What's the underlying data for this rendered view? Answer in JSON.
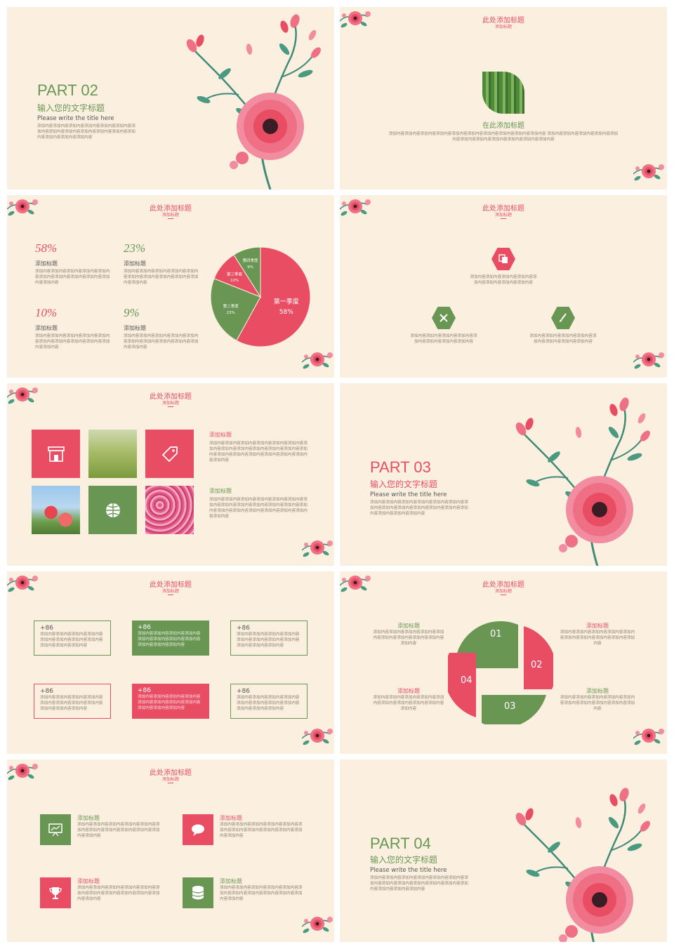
{
  "slide1": {
    "part": "PART 02",
    "title_cn": "输入您的文字标题",
    "title_en": "Please write the title here",
    "body": "添加内容添加内容添加内容添加内容添加内容添加内容添加内容添加内容添加内容添加内容添加内容添加内容添加内容添加内容添加内容添加内容"
  },
  "slide2": {
    "title": "此处添加标题",
    "subtitle": "添加标题",
    "caption": "在此添加标题",
    "body": "添加内容添加内容添加内容添加内容添加内容添加内容添加内容添加内容添加内容添加内容 添加内容添加内容添加内容添加内容添加内容添加内容添加内容添加内容添加内容添加内容添加内容"
  },
  "slide3": {
    "title": "此处添加标题",
    "subtitle": "添加标题",
    "stats": [
      {
        "pct": "58%",
        "label": "添加标题",
        "body": "添加内容添加内容添加内容添加内容添加内容添加内容添加内容添加内容添加内容添加内容添加内容"
      },
      {
        "pct": "23%",
        "label": "添加标题",
        "body": "添加内容添加内容添加内容添加内容添加内容添加内容添加内容添加内容添加内容添加内容添加内容"
      },
      {
        "pct": "10%",
        "label": "添加标题",
        "body": "添加内容添加内容添加内容添加内容添加内容添加内容添加内容添加内容添加内容添加内容添加内容"
      },
      {
        "pct": "9%",
        "label": "添加标题",
        "body": "添加内容添加内容添加内容添加内容添加内容添加内容添加内容添加内容添加内容添加内容添加内容"
      }
    ],
    "chart_data": {
      "type": "pie",
      "categories": [
        "第一季度",
        "第二季度",
        "第三季度",
        "第四季度"
      ],
      "values": [
        58,
        23,
        10,
        9
      ],
      "labels": [
        "58%",
        "23%",
        "10%",
        "9%"
      ],
      "colors": [
        "#e84d63",
        "#6a9654",
        "#e84d63",
        "#6a9654"
      ]
    }
  },
  "slide4": {
    "title": "此处添加标题",
    "subtitle": "添加标题",
    "items": [
      {
        "icon": "copy-icon",
        "body": "添加内容添加内容添加内容添加内容添加内容添加内容添加内容添加内容"
      },
      {
        "icon": "tools-icon",
        "body": "添加内容添加内容添加内容添加内容添加内容添加内容添加内容添加内容"
      },
      {
        "icon": "brush-icon",
        "body": "添加内容添加内容添加内容添加内容添加内容添加内容添加内容添加内容"
      }
    ]
  },
  "slide5": {
    "title": "此处添加标题",
    "subtitle": "添加标题",
    "blocks": [
      {
        "heading": "添加标题",
        "body": "添加内容添加内容添加内容添加内容添加内容添加内容添加内容添加内容添加内容添加内容添加内容添加内容添加内容添加内容添加内容添加内容添加内容添加内容添加内容添加内容"
      },
      {
        "heading": "添加标题",
        "body": "添加内容添加内容添加内容添加内容添加内容添加内容添加内容添加内容添加内容添加内容添加内容添加内容添加内容添加内容添加内容添加内容添加内容添加内容添加内容添加内容"
      }
    ]
  },
  "slide6": {
    "part": "PART 03",
    "title_cn": "输入您的文字标题",
    "title_en": "Please write the title here",
    "body": "添加内容添加内容添加内容添加内容添加内容添加内容添加内容添加内容添加内容添加内容添加内容添加内容添加内容添加内容添加内容添加内容"
  },
  "slide7": {
    "title": "此处添加标题",
    "subtitle": "添加标题",
    "boxes": [
      {
        "num": "+86",
        "body": "添加内容添加内容添加内容添加内容添加内容添加内容添加内容添加内容添加内容添加内容添加内容"
      },
      {
        "num": "+86",
        "body": "添加内容添加内容添加内容添加内容添加内容添加内容添加内容添加内容添加内容添加内容添加内容"
      },
      {
        "num": "+86",
        "body": "添加内容添加内容添加内容添加内容添加内容添加内容添加内容添加内容添加内容添加内容添加内容"
      },
      {
        "num": "+86",
        "body": "添加内容添加内容添加内容添加内容添加内容添加内容添加内容添加内容添加内容添加内容添加内容"
      },
      {
        "num": "+86",
        "body": "添加内容添加内容添加内容添加内容添加内容添加内容添加内容添加内容添加内容添加内容添加内容"
      },
      {
        "num": "+86",
        "body": "添加内容添加内容添加内容添加内容添加内容添加内容添加内容添加内容添加内容添加内容添加内容"
      }
    ]
  },
  "slide8": {
    "title": "此处添加标题",
    "subtitle": "添加标题",
    "numbers": [
      "01",
      "02",
      "03",
      "04"
    ],
    "items": [
      {
        "heading": "添加标题",
        "body": "添加内容添加内容添加内容添加内容添加内容添加内容添加内容添加内容添加内容添加内容"
      },
      {
        "heading": "添加标题",
        "body": "添加内容添加内容添加内容添加内容添加内容添加内容添加内容添加内容添加内容添加内容"
      },
      {
        "heading": "添加标题",
        "body": "添加内容添加内容添加内容添加内容添加内容添加内容添加内容添加内容添加内容添加内容"
      },
      {
        "heading": "添加标题",
        "body": "添加内容添加内容添加内容添加内容添加内容添加内容添加内容添加内容添加内容添加内容"
      }
    ]
  },
  "slide9": {
    "title": "此处添加标题",
    "subtitle": "添加标题",
    "items": [
      {
        "icon": "presentation-icon",
        "heading": "添加标题",
        "body": "添加内容添加内容添加内容添加内容添加内容添加内容添加内容添加内容添加内容添加内容添加内容添加内容"
      },
      {
        "icon": "chat-icon",
        "heading": "添加标题",
        "body": "添加内容添加内容添加内容添加内容添加内容添加内容添加内容添加内容添加内容添加内容添加内容添加内容"
      },
      {
        "icon": "trophy-icon",
        "heading": "添加标题",
        "body": "添加内容添加内容添加内容添加内容添加内容添加内容添加内容添加内容添加内容添加内容添加内容添加内容"
      },
      {
        "icon": "database-icon",
        "heading": "添加标题",
        "body": "添加内容添加内容添加内容添加内容添加内容添加内容添加内容添加内容添加内容添加内容添加内容添加内容"
      }
    ]
  },
  "slide10": {
    "part": "PART 04",
    "title_cn": "输入您的文字标题",
    "title_en": "Please write the title here",
    "body": "添加内容添加内容添加内容添加内容添加内容添加内容添加内容添加内容添加内容添加内容添加内容添加内容添加内容添加内容添加内容添加内容"
  },
  "colors": {
    "pink": "#e84d63",
    "green": "#6a9654",
    "background": "#fbf0e0"
  }
}
